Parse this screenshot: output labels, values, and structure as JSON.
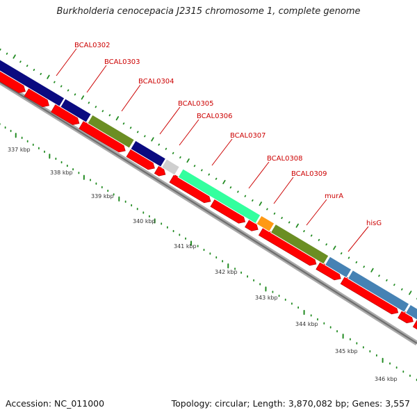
{
  "title": "Burkholderia cenocepacia J2315 chromosome 1, complete genome",
  "footer": {
    "accession": "Accession: NC_011000",
    "topology": "Topology: circular; Length: 3,870,082 bp; Genes: 3,557"
  },
  "colors": {
    "cds_red": "#ff0000",
    "backbone_gray": "#8c8c8c",
    "tick_green": "#228b22",
    "label_red": "#cc0000",
    "navy": "#0a0a80",
    "olive": "#6b8e23",
    "gray": "#cfcfcf",
    "spring_green": "#33ff9e",
    "orange": "#ff9914",
    "steel_blue": "#4682b4"
  },
  "ruler_labels": [
    "337 kbp",
    "338 kbp",
    "339 kbp",
    "340 kbp",
    "341 kbp",
    "342 kbp",
    "343 kbp",
    "344 kbp",
    "345 kbp",
    "346 kbp"
  ],
  "gene_labels": [
    "BCAL0302",
    "BCAL0303",
    "BCAL0304",
    "BCAL0305",
    "BCAL0306",
    "BCAL0307",
    "BCAL0308",
    "BCAL0309",
    "murA",
    "hisG"
  ],
  "cog_features": [
    {
      "color": "navy"
    },
    {
      "color": "navy"
    },
    {
      "color": "olive"
    },
    {
      "color": "navy"
    },
    {
      "color": "gray"
    },
    {
      "color": "spring_green"
    },
    {
      "color": "orange"
    },
    {
      "color": "olive"
    },
    {
      "color": "steel_blue"
    },
    {
      "color": "steel_blue"
    },
    {
      "color": "steel_blue"
    }
  ],
  "cds_count": 15
}
